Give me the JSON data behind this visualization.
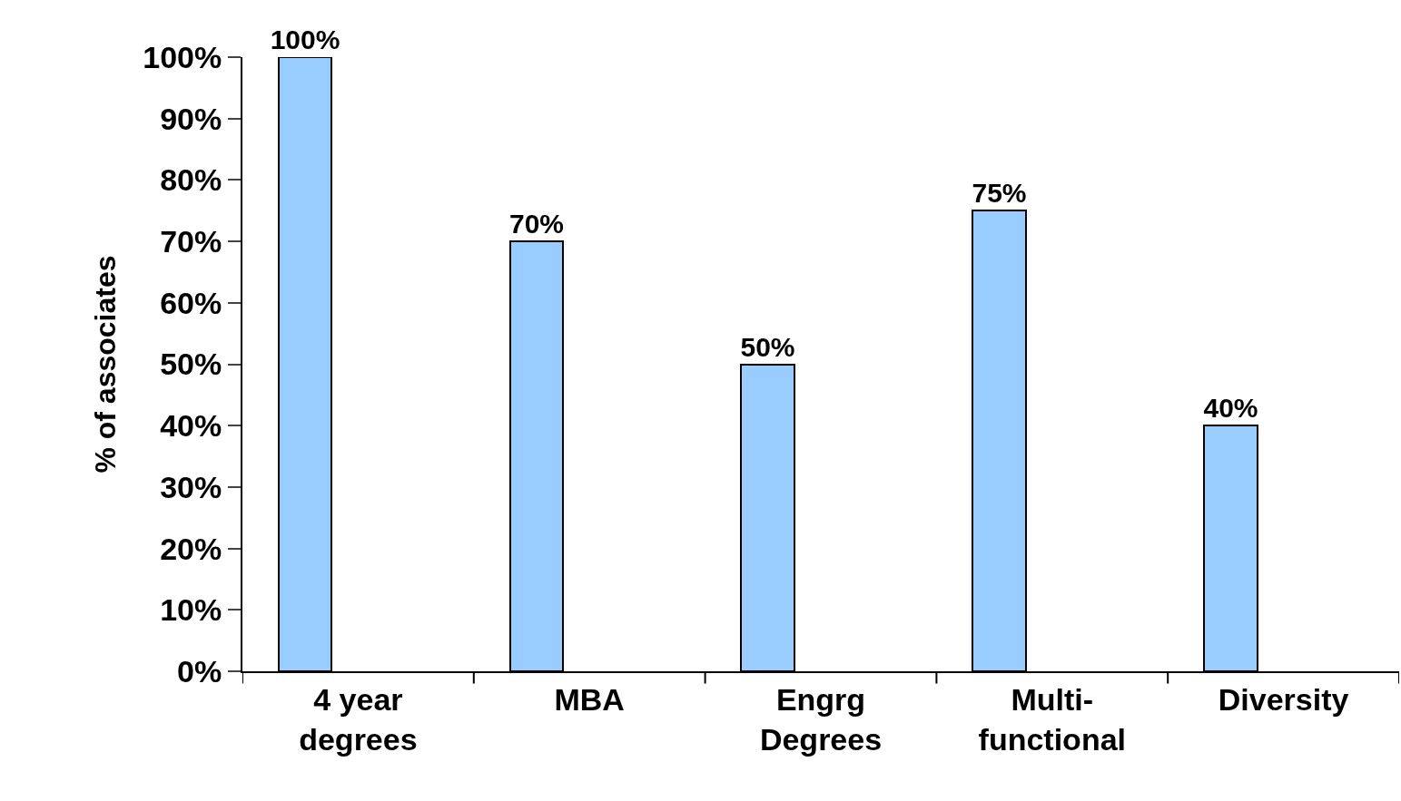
{
  "chart_data": {
    "type": "bar",
    "ylabel": "% of associates",
    "categories": [
      "4 year\ndegrees",
      "MBA",
      "Engrg\nDegrees",
      "Multi-\nfunctional",
      "Diversity"
    ],
    "values": [
      100,
      70,
      50,
      75,
      40
    ],
    "value_labels": [
      "100%",
      "70%",
      "50%",
      "75%",
      "40%"
    ],
    "color": "#99ccff",
    "ylim": [
      0,
      100
    ],
    "yticks": [
      {
        "value": 0,
        "label": "0%"
      },
      {
        "value": 10,
        "label": "10%"
      },
      {
        "value": 20,
        "label": "20%"
      },
      {
        "value": 30,
        "label": "30%"
      },
      {
        "value": 40,
        "label": "40%"
      },
      {
        "value": 50,
        "label": "50%"
      },
      {
        "value": 60,
        "label": "60%"
      },
      {
        "value": 70,
        "label": "70%"
      },
      {
        "value": 80,
        "label": "80%"
      },
      {
        "value": 90,
        "label": "90%"
      },
      {
        "value": 100,
        "label": "100%"
      }
    ],
    "legend": false
  }
}
